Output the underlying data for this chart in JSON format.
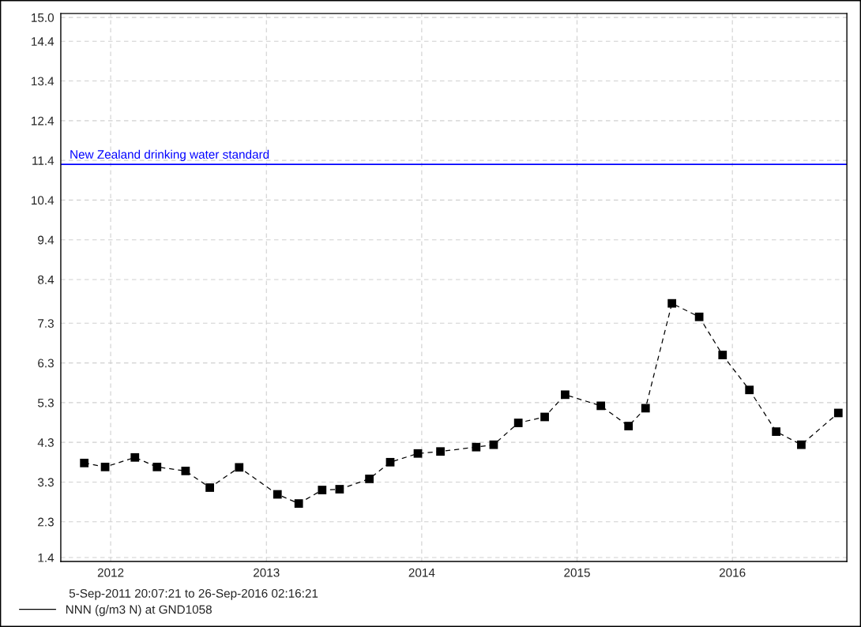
{
  "chart_data": {
    "type": "line",
    "annotations": [
      "5-Sep-2011 20:07:21 to 26-Sep-2016 02:16:21"
    ],
    "x": [
      "2011-10-31",
      "2011-12-19",
      "2012-02-27",
      "2012-04-19",
      "2012-06-25",
      "2012-08-21",
      "2012-10-29",
      "2013-01-27",
      "2013-03-18",
      "2013-05-12",
      "2013-06-22",
      "2013-08-31",
      "2013-10-19",
      "2013-12-23",
      "2014-02-14",
      "2014-05-09",
      "2014-06-19",
      "2014-08-16",
      "2014-10-17",
      "2014-12-04",
      "2015-02-26",
      "2015-05-02",
      "2015-06-11",
      "2015-08-12",
      "2015-10-15",
      "2015-12-09",
      "2016-02-10",
      "2016-04-13",
      "2016-06-11",
      "2016-09-06"
    ],
    "series": [
      {
        "name": "NNN (g/m3 N) at GND1058",
        "color": "#000000",
        "values": [
          3.78,
          3.68,
          3.92,
          3.68,
          3.58,
          3.16,
          3.67,
          2.99,
          2.76,
          3.1,
          3.12,
          3.38,
          3.8,
          4.02,
          4.07,
          4.18,
          4.24,
          4.79,
          4.94,
          5.5,
          5.22,
          4.71,
          5.16,
          7.8,
          7.46,
          6.5,
          5.62,
          4.57,
          4.24,
          5.04
        ]
      }
    ],
    "xlim": [
      "2011-09-05T20:07",
      "2016-09-26T02:16"
    ],
    "xticks": [
      {
        "value": "2012-01-01",
        "label": "2012"
      },
      {
        "value": "2013-01-01",
        "label": "2013"
      },
      {
        "value": "2014-01-01",
        "label": "2014"
      },
      {
        "value": "2015-01-01",
        "label": "2015"
      },
      {
        "value": "2016-01-01",
        "label": "2016"
      }
    ],
    "ylim": [
      1.3,
      15.1
    ],
    "yticks": [
      {
        "value": 1.4,
        "label": "1.4"
      },
      {
        "value": 2.3,
        "label": "2.3"
      },
      {
        "value": 3.3,
        "label": "3.3"
      },
      {
        "value": 4.3,
        "label": "4.3"
      },
      {
        "value": 5.3,
        "label": "5.3"
      },
      {
        "value": 6.3,
        "label": "6.3"
      },
      {
        "value": 7.3,
        "label": "7.3"
      },
      {
        "value": 8.4,
        "label": "8.4"
      },
      {
        "value": 9.4,
        "label": "9.4"
      },
      {
        "value": 10.4,
        "label": "10.4"
      },
      {
        "value": 11.4,
        "label": "11.4"
      },
      {
        "value": 12.4,
        "label": "12.4"
      },
      {
        "value": 13.4,
        "label": "13.4"
      },
      {
        "value": 14.4,
        "label": "14.4"
      },
      {
        "value": 15.0,
        "label": "15.0"
      }
    ],
    "ref_lines": [
      {
        "axis": "y",
        "value": 11.3,
        "label": "New Zealand drinking water standard",
        "color": "#0000ff"
      }
    ],
    "grid": true,
    "legend": "bottom",
    "marker": "square",
    "line_style": "dashed"
  }
}
